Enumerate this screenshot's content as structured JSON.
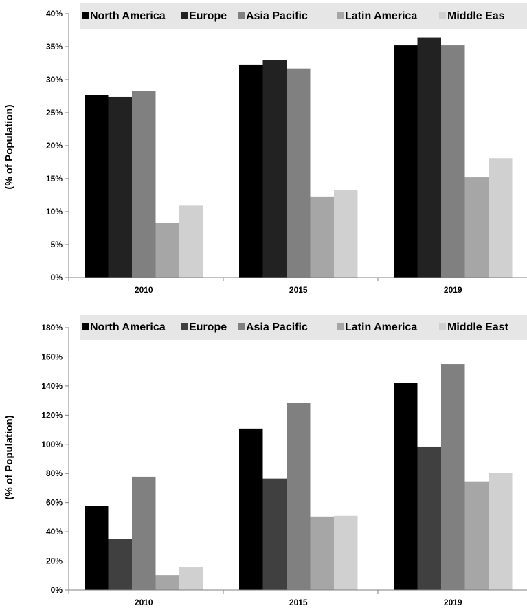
{
  "chart_data": [
    {
      "type": "bar",
      "title": "",
      "xlabel": "",
      "ylabel": "(% of Population)",
      "categories": [
        "2010",
        "2015",
        "2019"
      ],
      "ylim": [
        0,
        40
      ],
      "yticks": [
        "0%",
        "5%",
        "10%",
        "15%",
        "20%",
        "25%",
        "30%",
        "35%",
        "40%"
      ],
      "legend_position": "top",
      "grid": false,
      "series": [
        {
          "name": "North America",
          "color": "#000000",
          "values": [
            27.7,
            32.3,
            35.2
          ]
        },
        {
          "name": "Europe",
          "color": "#222222",
          "values": [
            27.4,
            33.0,
            36.4
          ]
        },
        {
          "name": "Asia Pacific",
          "color": "#808080",
          "values": [
            28.3,
            31.7,
            35.2
          ]
        },
        {
          "name": "Latin America",
          "color": "#a6a6a6",
          "values": [
            8.3,
            12.2,
            15.2
          ]
        },
        {
          "name": "Middle Eas",
          "color": "#d0d0d0",
          "values": [
            10.9,
            13.3,
            18.1
          ]
        }
      ]
    },
    {
      "type": "bar",
      "title": "",
      "xlabel": "",
      "ylabel": "(% of Population)",
      "categories": [
        "2010",
        "2015",
        "2019"
      ],
      "ylim": [
        0,
        180
      ],
      "yticks": [
        "0%",
        "20%",
        "40%",
        "60%",
        "80%",
        "100%",
        "120%",
        "140%",
        "160%",
        "180%"
      ],
      "legend_position": "top",
      "grid": false,
      "series": [
        {
          "name": "North America",
          "color": "#000000",
          "values": [
            57.7,
            110.8,
            142.1
          ]
        },
        {
          "name": "Europe",
          "color": "#404040",
          "values": [
            35.0,
            76.5,
            98.5
          ]
        },
        {
          "name": "Asia Pacific",
          "color": "#808080",
          "values": [
            77.8,
            128.5,
            155.0
          ]
        },
        {
          "name": "Latin America",
          "color": "#a6a6a6",
          "values": [
            10.3,
            50.5,
            74.6
          ]
        },
        {
          "name": "Middle East",
          "color": "#d0d0d0",
          "values": [
            15.6,
            51.0,
            80.4
          ]
        }
      ]
    }
  ]
}
